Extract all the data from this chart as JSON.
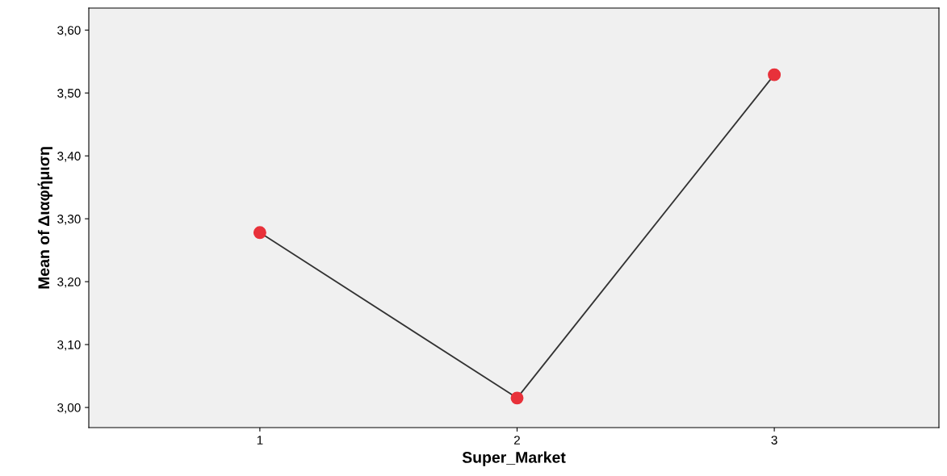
{
  "chart_data": {
    "type": "line",
    "xlabel": "Super_Market",
    "ylabel": "Mean of Διαφήμιση",
    "categories": [
      "1",
      "2",
      "3"
    ],
    "series": [
      {
        "color": "#333333",
        "values": [
          3.278,
          3.015,
          3.529
        ],
        "marker": "none"
      },
      {
        "type": "scatter",
        "color": "#e8313a",
        "values": [
          3.278,
          3.015,
          3.529
        ],
        "marker": "circle"
      }
    ],
    "ylim": [
      2.968,
      3.635
    ],
    "yticks": [
      {
        "value": 3.0,
        "label": "3,00"
      },
      {
        "value": 3.1,
        "label": "3,10"
      },
      {
        "value": 3.2,
        "label": "3,20"
      },
      {
        "value": 3.3,
        "label": "3,30"
      },
      {
        "value": 3.4,
        "label": "3,40"
      },
      {
        "value": 3.5,
        "label": "3,50"
      },
      {
        "value": 3.6,
        "label": "3,60"
      }
    ],
    "grid": false,
    "legend": false
  }
}
